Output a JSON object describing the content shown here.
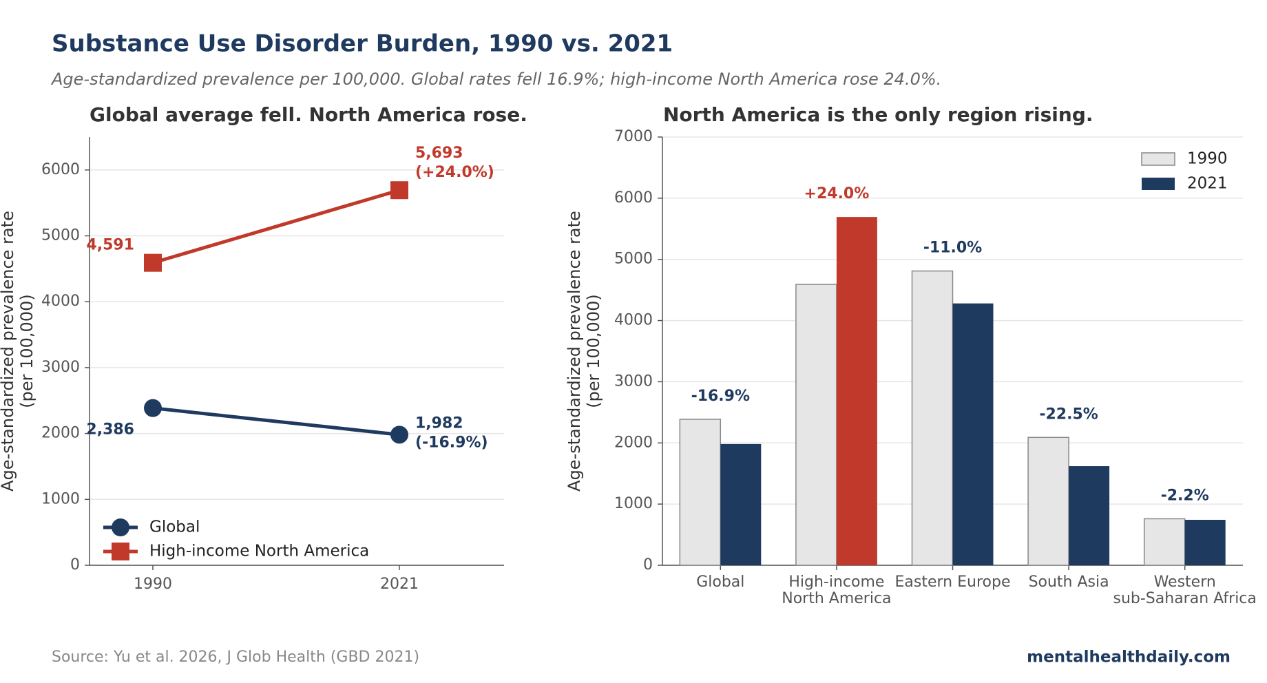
{
  "header": {
    "title": "Substance Use Disorder Burden, 1990 vs. 2021",
    "subtitle": "Age-standardized prevalence per 100,000. Global rates fell 16.9%; high-income North America rose 24.0%."
  },
  "footer": {
    "source": "Source: Yu et al. 2026, J Glob Health (GBD 2021)",
    "site": "mentalhealthdaily.com"
  },
  "chart_data": [
    {
      "type": "line",
      "title": "Global average fell. North America rose.",
      "ylabel": [
        "Age-standardized prevalence rate",
        "(per 100,000)"
      ],
      "categories": [
        "1990",
        "2021"
      ],
      "series": [
        {
          "name": "Global",
          "color": "#1f3a5f",
          "marker": "circle",
          "values": [
            2386,
            1982
          ],
          "value_labels": [
            "2,386",
            "1,982"
          ],
          "change_label": "(-16.9%)"
        },
        {
          "name": "High-income North America",
          "color": "#c0392b",
          "marker": "square",
          "values": [
            4591,
            5693
          ],
          "value_labels": [
            "4,591",
            "5,693"
          ],
          "change_label": "(+24.0%)"
        }
      ],
      "ylim": [
        0,
        6500
      ],
      "yticks": [
        0,
        1000,
        2000,
        3000,
        4000,
        5000,
        6000
      ],
      "grid": true,
      "legend": "lower left"
    },
    {
      "type": "bar",
      "title": "North America is the only region rising.",
      "ylabel": [
        "Age-standardized prevalence rate",
        "(per 100,000)"
      ],
      "categories": [
        "Global",
        "High-income\nNorth America",
        "Eastern Europe",
        "South Asia",
        "Western\nsub-Saharan Africa"
      ],
      "series": [
        {
          "name": "1990",
          "color": "#e6e6e6",
          "values": [
            2386,
            4591,
            4810,
            2090,
            760
          ]
        },
        {
          "name": "2021",
          "color": "#1f3a5f",
          "colors": [
            "#1f3a5f",
            "#c0392b",
            "#1f3a5f",
            "#1f3a5f",
            "#1f3a5f"
          ],
          "values": [
            1982,
            5693,
            4280,
            1620,
            743
          ]
        }
      ],
      "change_labels": [
        "-16.9%",
        "+24.0%",
        "-11.0%",
        "-22.5%",
        "-2.2%"
      ],
      "ylim": [
        0,
        7000
      ],
      "yticks": [
        0,
        1000,
        2000,
        3000,
        4000,
        5000,
        6000,
        7000
      ],
      "grid": true,
      "legend": "upper right"
    }
  ]
}
